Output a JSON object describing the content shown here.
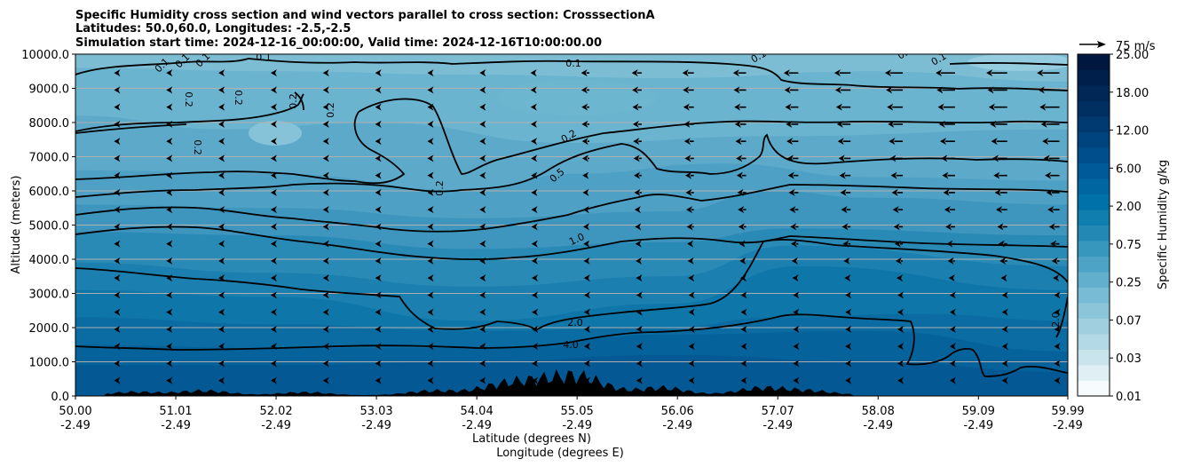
{
  "chart_data": {
    "type": "contour",
    "title_lines": [
      "Specific Humidity cross section and wind vectors parallel to cross section: CrosssectionA",
      "Latitudes: 50.0,60.0, Longitudes: -2.5,-2.5",
      "Simulation start time: 2024-12-16_00:00:00, Valid time: 2024-12-16T10:00:00.00"
    ],
    "xlabel_lines": [
      "Latitude (degrees N)",
      "Longitude (degrees E)"
    ],
    "ylabel": "Altitude (meters)",
    "x_tick_lat": [
      "50.00",
      "51.01",
      "52.02",
      "53.03",
      "54.04",
      "55.05",
      "56.06",
      "57.07",
      "58.08",
      "59.09",
      "59.99"
    ],
    "x_tick_lon": [
      "-2.49",
      "-2.49",
      "-2.49",
      "-2.49",
      "-2.49",
      "-2.49",
      "-2.49",
      "-2.49",
      "-2.49",
      "-2.49",
      "-2.49"
    ],
    "y_ticks": [
      "0.0",
      "1000.0",
      "2000.0",
      "3000.0",
      "4000.0",
      "5000.0",
      "6000.0",
      "7000.0",
      "8000.0",
      "9000.0",
      "10000.0"
    ],
    "ylim": [
      0,
      10000
    ],
    "grid": "horizontal",
    "colorbar": {
      "label": "Specific Humidity g/kg",
      "tick_labels": [
        "0.01",
        "0.03",
        "0.07",
        "0.25",
        "0.75",
        "2.00",
        "6.00",
        "12.00",
        "18.00",
        "25.00"
      ],
      "level_colors": [
        "#f7fbfd",
        "#e0eff4",
        "#c9e4ec",
        "#b4d9e6",
        "#a0cfe0",
        "#8cc5da",
        "#78bbd4",
        "#62afcd",
        "#4da3c5",
        "#3797bd",
        "#2389b4",
        "#107eae",
        "#0072aa",
        "#0066a2",
        "#005a99",
        "#004f8d",
        "#00447f",
        "#003a70",
        "#003062",
        "#002756",
        "#001f4b",
        "#001740"
      ]
    },
    "quiver_key": {
      "label": "75 m/s"
    },
    "contour_labels": [
      "0.1",
      "0.1",
      "0.1",
      "0.1",
      "0.1",
      "0.1",
      "0.1",
      "0.1",
      "0.2",
      "0.2",
      "0.2",
      "0.2",
      "0.2",
      "0.2",
      "0.2",
      "0.5",
      "1.0",
      "2.0",
      "4.0",
      "2.0"
    ],
    "contour_levels": [
      0.1,
      0.2,
      0.5,
      1.0,
      2.0,
      4.0
    ],
    "terrain_peaks": [
      {
        "lat": 50.6,
        "height": 130
      },
      {
        "lat": 51.3,
        "height": 180
      },
      {
        "lat": 52.3,
        "height": 120
      },
      {
        "lat": 53.6,
        "height": 180
      },
      {
        "lat": 54.3,
        "height": 380
      },
      {
        "lat": 54.7,
        "height": 420
      },
      {
        "lat": 55.1,
        "height": 650
      },
      {
        "lat": 55.9,
        "height": 300
      },
      {
        "lat": 56.9,
        "height": 280
      },
      {
        "lat": 57.4,
        "height": 160
      }
    ],
    "wind": "mostly westward (toward lower latitude), strongest near upper levels at northern end"
  }
}
